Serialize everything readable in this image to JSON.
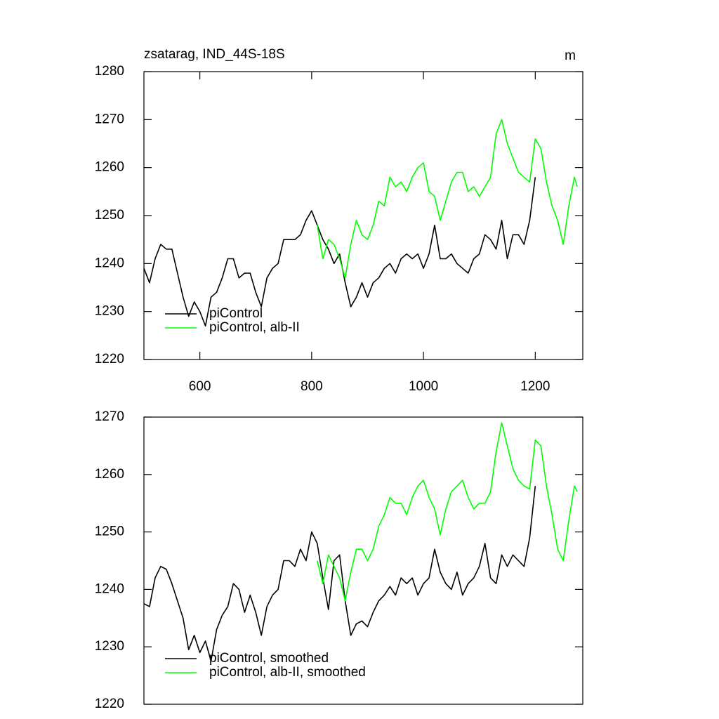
{
  "chart_data": [
    {
      "type": "line",
      "title": "zsatarag, IND_44S-18S",
      "units": "m",
      "xlim": [
        500,
        1285
      ],
      "xticks": [
        600,
        800,
        1000,
        1200
      ],
      "ylim": [
        1220,
        1280
      ],
      "yticks": [
        1220,
        1230,
        1240,
        1250,
        1260,
        1270,
        1280
      ],
      "legend": "lower left",
      "series": [
        {
          "name": "piControl",
          "color": "#000000",
          "x": [
            500,
            510,
            520,
            530,
            540,
            550,
            560,
            570,
            580,
            590,
            600,
            610,
            620,
            630,
            640,
            650,
            660,
            670,
            680,
            690,
            700,
            710,
            720,
            730,
            740,
            750,
            760,
            770,
            780,
            790,
            800,
            810,
            820,
            830,
            840,
            850,
            860,
            870,
            880,
            890,
            900,
            910,
            920,
            930,
            940,
            950,
            960,
            970,
            980,
            990,
            1000,
            1010,
            1020,
            1030,
            1040,
            1050,
            1060,
            1070,
            1080,
            1090,
            1100,
            1110,
            1120,
            1130,
            1140,
            1150,
            1160,
            1170,
            1180,
            1190,
            1200
          ],
          "values": [
            1239,
            1236,
            1241,
            1244,
            1243,
            1243,
            1238,
            1233,
            1229,
            1232,
            1230,
            1227,
            1233,
            1234,
            1237,
            1241,
            1241,
            1237,
            1238,
            1238,
            1234,
            1231,
            1237,
            1239,
            1240,
            1245,
            1245,
            1245,
            1246,
            1249,
            1251,
            1248,
            1245,
            1243,
            1240,
            1242,
            1236,
            1231,
            1233,
            1236,
            1233,
            1236,
            1237,
            1239,
            1240,
            1238,
            1241,
            1242,
            1241,
            1242,
            1239,
            1242,
            1248,
            1241,
            1241,
            1242,
            1240,
            1239,
            1238,
            1241,
            1242,
            1246,
            1245,
            1243,
            1249,
            1241,
            1246,
            1246,
            1244,
            1249,
            1258
          ]
        },
        {
          "name": "piControl, alb-II",
          "color": "#00ff00",
          "x": [
            810,
            820,
            830,
            840,
            850,
            860,
            870,
            880,
            890,
            900,
            910,
            920,
            930,
            940,
            950,
            960,
            970,
            980,
            990,
            1000,
            1010,
            1020,
            1030,
            1040,
            1050,
            1060,
            1070,
            1080,
            1090,
            1100,
            1110,
            1120,
            1130,
            1140,
            1150,
            1160,
            1170,
            1180,
            1190,
            1200,
            1210,
            1220,
            1230,
            1240,
            1250,
            1260,
            1270,
            1275
          ],
          "values": [
            1248,
            1241,
            1245,
            1244,
            1241,
            1237,
            1244,
            1249,
            1246,
            1245,
            1248,
            1253,
            1252,
            1258,
            1256,
            1257,
            1255,
            1258,
            1260,
            1261,
            1255,
            1254,
            1249,
            1253,
            1257,
            1259,
            1259,
            1255,
            1256,
            1254,
            1256,
            1258,
            1267,
            1270,
            1265,
            1262,
            1259,
            1258,
            1257,
            1266,
            1264,
            1257,
            1252,
            1249,
            1244,
            1252,
            1258,
            1256
          ]
        }
      ]
    },
    {
      "type": "line",
      "xlim": [
        500,
        1285
      ],
      "ylim": [
        1220,
        1270
      ],
      "yticks": [
        1220,
        1230,
        1240,
        1250,
        1260,
        1270
      ],
      "legend": "lower left",
      "series": [
        {
          "name": "piControl, smoothed",
          "color": "#000000",
          "x": [
            500,
            510,
            520,
            530,
            540,
            550,
            560,
            570,
            580,
            590,
            600,
            610,
            620,
            630,
            640,
            650,
            660,
            670,
            680,
            690,
            700,
            710,
            720,
            730,
            740,
            750,
            760,
            770,
            780,
            790,
            800,
            810,
            820,
            830,
            840,
            850,
            860,
            870,
            880,
            890,
            900,
            910,
            920,
            930,
            940,
            950,
            960,
            970,
            980,
            990,
            1000,
            1010,
            1020,
            1030,
            1040,
            1050,
            1060,
            1070,
            1080,
            1090,
            1100,
            1110,
            1120,
            1130,
            1140,
            1150,
            1160,
            1170,
            1180,
            1190,
            1200
          ],
          "values": [
            1237.5,
            1237,
            1242,
            1244,
            1243.5,
            1241,
            1238,
            1235,
            1229.5,
            1232,
            1229,
            1231,
            1227.5,
            1233,
            1235.5,
            1237,
            1241,
            1240,
            1236,
            1239,
            1236,
            1232,
            1237,
            1239,
            1240,
            1245,
            1245,
            1244,
            1247,
            1245,
            1250,
            1248,
            1242,
            1236.5,
            1245,
            1246,
            1238,
            1232,
            1234,
            1234.5,
            1233.5,
            1236,
            1238,
            1239,
            1240.5,
            1239,
            1242,
            1241,
            1242,
            1239,
            1241,
            1242,
            1247,
            1243,
            1241,
            1240,
            1243,
            1239,
            1241,
            1242,
            1244,
            1248,
            1242,
            1241,
            1246,
            1244,
            1246,
            1245,
            1244,
            1249,
            1258
          ]
        },
        {
          "name": "piControl, alb-II, smoothed",
          "color": "#00ff00",
          "x": [
            810,
            820,
            830,
            840,
            850,
            860,
            870,
            880,
            890,
            900,
            910,
            920,
            930,
            940,
            950,
            960,
            970,
            980,
            990,
            1000,
            1010,
            1020,
            1030,
            1040,
            1050,
            1060,
            1070,
            1080,
            1090,
            1100,
            1110,
            1120,
            1130,
            1140,
            1150,
            1160,
            1170,
            1180,
            1190,
            1200,
            1210,
            1220,
            1230,
            1240,
            1250,
            1260,
            1270,
            1275
          ],
          "values": [
            1245,
            1241,
            1246,
            1244,
            1242,
            1238,
            1243,
            1247,
            1247,
            1245,
            1247,
            1251,
            1253,
            1256,
            1255,
            1255,
            1253,
            1256,
            1258,
            1259,
            1256,
            1254,
            1249.5,
            1254,
            1257,
            1258,
            1259,
            1256,
            1254,
            1255,
            1255,
            1257,
            1264,
            1269,
            1265,
            1261,
            1259,
            1258,
            1257.5,
            1266,
            1265,
            1258,
            1253,
            1247,
            1245,
            1252,
            1258,
            1257
          ]
        }
      ]
    }
  ]
}
